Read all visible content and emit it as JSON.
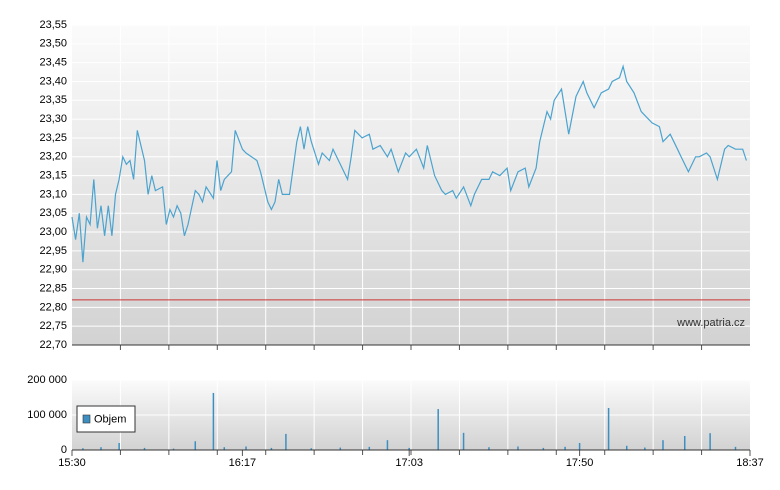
{
  "chart_data": [
    {
      "type": "line",
      "color": "#4ba3cf",
      "reference_line": 22.82,
      "reference_color": "#cc3333",
      "watermark": "www.patria.cz",
      "xlim": [
        "15:30",
        "18:37"
      ],
      "ylim": [
        22.7,
        23.55
      ],
      "yticks": [
        {
          "value": 22.7,
          "label": "22,70"
        },
        {
          "value": 22.75,
          "label": "22,75"
        },
        {
          "value": 22.8,
          "label": "22,80"
        },
        {
          "value": 22.85,
          "label": "22,85"
        },
        {
          "value": 22.9,
          "label": "22,90"
        },
        {
          "value": 22.95,
          "label": "22,95"
        },
        {
          "value": 23.0,
          "label": "23,00"
        },
        {
          "value": 23.05,
          "label": "23,05"
        },
        {
          "value": 23.1,
          "label": "23,10"
        },
        {
          "value": 23.15,
          "label": "23,15"
        },
        {
          "value": 23.2,
          "label": "23,20"
        },
        {
          "value": 23.25,
          "label": "23,25"
        },
        {
          "value": 23.3,
          "label": "23,30"
        },
        {
          "value": 23.35,
          "label": "23,35"
        },
        {
          "value": 23.4,
          "label": "23,40"
        },
        {
          "value": 23.45,
          "label": "23,45"
        },
        {
          "value": 23.5,
          "label": "23,50"
        },
        {
          "value": 23.55,
          "label": "23,55"
        }
      ],
      "grid": true,
      "x": [
        "15:30",
        "15:31",
        "15:32",
        "15:33",
        "15:34",
        "15:35",
        "15:36",
        "15:37",
        "15:38",
        "15:39",
        "15:40",
        "15:41",
        "15:42",
        "15:43",
        "15:44",
        "15:45",
        "15:46",
        "15:47",
        "15:48",
        "15:50",
        "15:51",
        "15:52",
        "15:53",
        "15:55",
        "15:56",
        "15:57",
        "15:58",
        "15:59",
        "16:00",
        "16:01",
        "16:02",
        "16:04",
        "16:05",
        "16:06",
        "16:07",
        "16:09",
        "16:10",
        "16:11",
        "16:12",
        "16:14",
        "16:15",
        "16:17",
        "16:18",
        "16:21",
        "16:22",
        "16:24",
        "16:25",
        "16:26",
        "16:27",
        "16:28",
        "16:30",
        "16:32",
        "16:33",
        "16:34",
        "16:35",
        "16:36",
        "16:38",
        "16:39",
        "16:41",
        "16:42",
        "16:44",
        "16:46",
        "16:47",
        "16:48",
        "16:50",
        "16:52",
        "16:53",
        "16:55",
        "16:57",
        "16:58",
        "17:00",
        "17:02",
        "17:03",
        "17:05",
        "17:07",
        "17:08",
        "17:10",
        "17:12",
        "17:13",
        "17:15",
        "17:16",
        "17:18",
        "17:20",
        "17:21",
        "17:23",
        "17:25",
        "17:26",
        "17:28",
        "17:30",
        "17:31",
        "17:33",
        "17:35",
        "17:36",
        "17:38",
        "17:39",
        "17:41",
        "17:42",
        "17:43",
        "17:45",
        "17:46",
        "17:47",
        "17:49",
        "17:51",
        "17:52",
        "17:54",
        "17:56",
        "17:58",
        "17:59",
        "18:01",
        "18:02",
        "18:03",
        "18:05",
        "18:07",
        "18:08",
        "18:10",
        "18:12",
        "18:13",
        "18:15",
        "18:17",
        "18:18",
        "18:20",
        "18:22",
        "18:23",
        "18:25",
        "18:26",
        "18:28",
        "18:30",
        "18:31",
        "18:33",
        "18:35",
        "18:36"
      ],
      "values": [
        23.04,
        22.98,
        23.05,
        22.92,
        23.04,
        23.02,
        23.14,
        23.01,
        23.07,
        22.99,
        23.07,
        22.99,
        23.1,
        23.14,
        23.2,
        23.18,
        23.19,
        23.14,
        23.27,
        23.19,
        23.1,
        23.15,
        23.11,
        23.12,
        23.02,
        23.06,
        23.04,
        23.07,
        23.05,
        22.99,
        23.02,
        23.11,
        23.1,
        23.08,
        23.12,
        23.09,
        23.19,
        23.11,
        23.14,
        23.16,
        23.27,
        23.22,
        23.21,
        23.19,
        23.16,
        23.08,
        23.06,
        23.08,
        23.14,
        23.1,
        23.1,
        23.24,
        23.28,
        23.22,
        23.28,
        23.24,
        23.18,
        23.21,
        23.19,
        23.22,
        23.18,
        23.14,
        23.2,
        23.27,
        23.25,
        23.26,
        23.22,
        23.23,
        23.2,
        23.22,
        23.16,
        23.21,
        23.2,
        23.22,
        23.17,
        23.23,
        23.15,
        23.11,
        23.1,
        23.11,
        23.09,
        23.12,
        23.07,
        23.1,
        23.14,
        23.14,
        23.16,
        23.15,
        23.17,
        23.11,
        23.16,
        23.17,
        23.12,
        23.17,
        23.24,
        23.32,
        23.3,
        23.35,
        23.38,
        23.32,
        23.26,
        23.36,
        23.4,
        23.37,
        23.33,
        23.37,
        23.38,
        23.4,
        23.41,
        23.44,
        23.4,
        23.37,
        23.32,
        23.31,
        23.29,
        23.28,
        23.24,
        23.26,
        23.22,
        23.2,
        23.16,
        23.2,
        23.2,
        23.21,
        23.2,
        23.14,
        23.22,
        23.23,
        23.22,
        23.22,
        23.19
      ]
    },
    {
      "type": "bar",
      "xlim": [
        "15:30",
        "18:37"
      ],
      "xticks": [
        "15:30",
        "16:17",
        "17:03",
        "17:50",
        "18:37"
      ],
      "ylim": [
        0,
        200000
      ],
      "yticks": [
        0,
        {
          "value": 100000,
          "label": "100 000"
        },
        {
          "value": 200000,
          "label": "200 000"
        }
      ],
      "grid": true,
      "x": [
        "15:33",
        "15:38",
        "15:43",
        "15:50",
        "15:58",
        "16:04",
        "16:09",
        "16:12",
        "16:18",
        "16:25",
        "16:29",
        "16:36",
        "16:44",
        "16:52",
        "16:57",
        "17:03",
        "17:11",
        "17:18",
        "17:25",
        "17:33",
        "17:40",
        "17:46",
        "17:50",
        "17:58",
        "18:03",
        "18:08",
        "18:13",
        "18:19",
        "18:26",
        "18:33"
      ],
      "series": [
        {
          "name": "Objem",
          "color": "#3d8fc2",
          "values": [
            5000,
            8000,
            20000,
            6000,
            4000,
            25000,
            163000,
            8000,
            10000,
            6000,
            46000,
            5000,
            7000,
            9000,
            28000,
            6000,
            117000,
            49000,
            8000,
            10000,
            6000,
            9000,
            20000,
            120000,
            12000,
            7000,
            28000,
            40000,
            48000,
            9000
          ]
        }
      ]
    }
  ]
}
